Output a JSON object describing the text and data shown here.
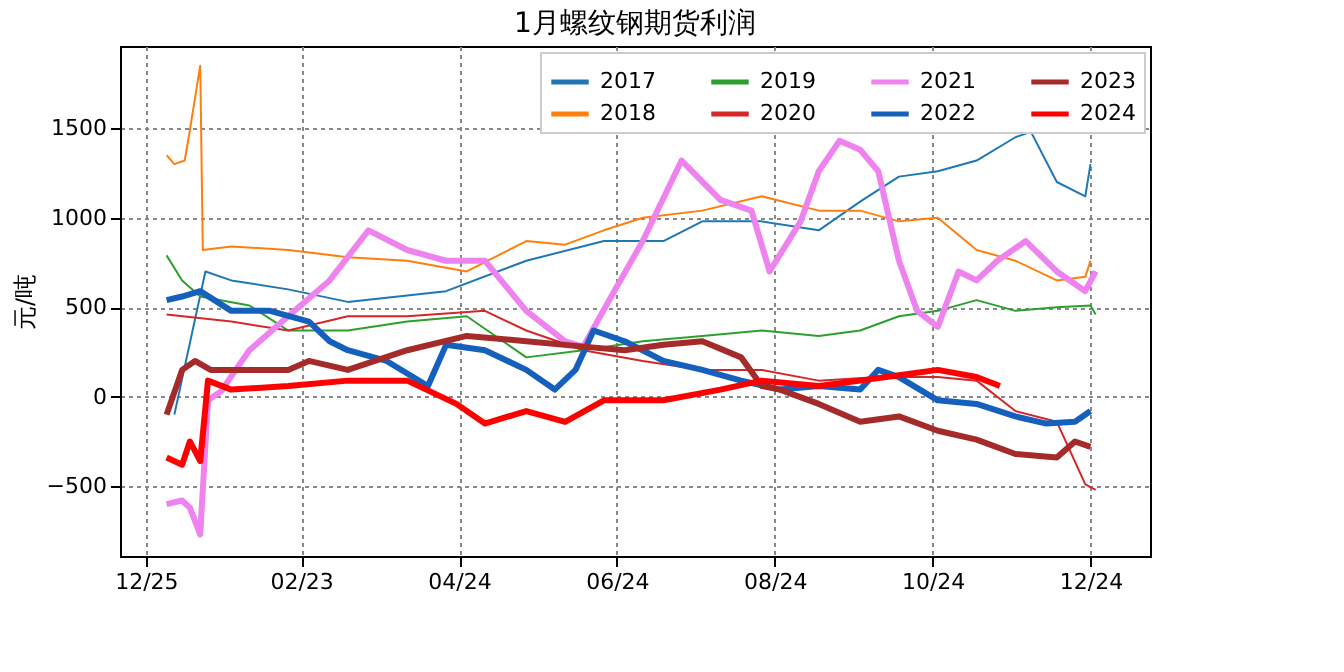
{
  "chart_data": {
    "type": "line",
    "title": "1月螺纹钢期货利润",
    "ylabel": "元/吨",
    "xlim": [
      "2023-12-15",
      "2025-01-16"
    ],
    "xticks": [
      {
        "value": "2023-12-25",
        "label": "12/25"
      },
      {
        "value": "2024-02-23",
        "label": "02/23"
      },
      {
        "value": "2024-04-24",
        "label": "04/24"
      },
      {
        "value": "2024-06-24",
        "label": "06/24"
      },
      {
        "value": "2024-08-24",
        "label": "08/24"
      },
      {
        "value": "2024-10-24",
        "label": "10/24"
      },
      {
        "value": "2024-12-24",
        "label": "12/24"
      }
    ],
    "ylim": [
      -890,
      1960
    ],
    "yticks": [
      -500,
      0,
      500,
      1000,
      1500
    ],
    "grid": true,
    "legend": "top right",
    "series": [
      {
        "name": "2017",
        "color": "#1f77b4",
        "x": [
          "2024-01-05",
          "2024-01-17",
          "2024-01-27",
          "2024-02-18",
          "2024-03-12",
          "2024-04-19",
          "2024-05-20",
          "2024-06-19",
          "2024-07-12",
          "2024-07-27",
          "2024-08-19",
          "2024-09-10",
          "2024-09-26",
          "2024-10-11",
          "2024-10-26",
          "2024-11-10",
          "2024-11-25",
          "2024-12-01",
          "2024-12-11",
          "2024-12-22",
          "2024-12-24"
        ],
        "values": [
          -100,
          700,
          650,
          600,
          530,
          590,
          760,
          870,
          870,
          980,
          980,
          930,
          1090,
          1230,
          1260,
          1320,
          1450,
          1480,
          1200,
          1120,
          1300
        ]
      },
      {
        "name": "2018",
        "color": "#ff7f0e",
        "x": [
          "2024-01-02",
          "2024-01-05",
          "2024-01-09",
          "2024-01-11",
          "2024-01-15",
          "2024-01-16",
          "2024-01-27",
          "2024-02-18",
          "2024-03-12",
          "2024-04-04",
          "2024-04-27",
          "2024-05-20",
          "2024-06-04",
          "2024-06-19",
          "2024-07-04",
          "2024-07-27",
          "2024-08-19",
          "2024-09-10",
          "2024-09-26",
          "2024-10-11",
          "2024-10-26",
          "2024-11-10",
          "2024-11-25",
          "2024-12-11",
          "2024-12-22",
          "2024-12-24"
        ],
        "values": [
          1350,
          1300,
          1320,
          1490,
          1850,
          820,
          840,
          820,
          780,
          760,
          700,
          870,
          850,
          930,
          1000,
          1040,
          1120,
          1040,
          1040,
          980,
          1000,
          820,
          760,
          650,
          670,
          760
        ]
      },
      {
        "name": "2019",
        "color": "#2ca02c",
        "x": [
          "2024-01-02",
          "2024-01-08",
          "2024-01-15",
          "2024-02-03",
          "2024-02-18",
          "2024-03-12",
          "2024-04-04",
          "2024-04-27",
          "2024-05-20",
          "2024-06-11",
          "2024-07-04",
          "2024-07-27",
          "2024-08-19",
          "2024-09-10",
          "2024-09-26",
          "2024-10-11",
          "2024-10-26",
          "2024-11-10",
          "2024-11-25",
          "2024-12-11",
          "2024-12-24",
          "2024-12-26"
        ],
        "values": [
          790,
          650,
          560,
          510,
          370,
          370,
          420,
          450,
          220,
          260,
          310,
          340,
          370,
          340,
          370,
          450,
          480,
          540,
          480,
          500,
          510,
          460
        ]
      },
      {
        "name": "2020",
        "color": "#d62728",
        "x": [
          "2024-01-02",
          "2024-01-27",
          "2024-02-18",
          "2024-03-12",
          "2024-04-04",
          "2024-05-04",
          "2024-05-20",
          "2024-06-11",
          "2024-07-04",
          "2024-07-27",
          "2024-08-19",
          "2024-09-10",
          "2024-10-03",
          "2024-10-26",
          "2024-11-10",
          "2024-11-25",
          "2024-12-11",
          "2024-12-22",
          "2024-12-26"
        ],
        "values": [
          460,
          420,
          370,
          450,
          450,
          480,
          370,
          260,
          200,
          150,
          150,
          90,
          110,
          110,
          90,
          -80,
          -140,
          -490,
          -520
        ]
      },
      {
        "name": "2021",
        "color": "#ee82ee",
        "x": [
          "2024-01-02",
          "2024-01-08",
          "2024-01-11",
          "2024-01-15",
          "2024-01-18",
          "2024-01-23",
          "2024-02-03",
          "2024-02-18",
          "2024-03-05",
          "2024-03-20",
          "2024-04-04",
          "2024-04-19",
          "2024-05-04",
          "2024-05-20",
          "2024-06-04",
          "2024-06-11",
          "2024-06-23",
          "2024-07-04",
          "2024-07-19",
          "2024-08-03",
          "2024-08-15",
          "2024-08-22",
          "2024-09-03",
          "2024-09-10",
          "2024-09-18",
          "2024-09-26",
          "2024-10-03",
          "2024-10-11",
          "2024-10-18",
          "2024-10-26",
          "2024-11-03",
          "2024-11-10",
          "2024-11-18",
          "2024-11-29",
          "2024-12-11",
          "2024-12-22",
          "2024-12-26"
        ],
        "values": [
          -600,
          -580,
          -620,
          -770,
          -20,
          30,
          260,
          450,
          650,
          930,
          820,
          760,
          760,
          480,
          310,
          280,
          590,
          870,
          1320,
          1100,
          1040,
          700,
          980,
          1260,
          1430,
          1380,
          1260,
          760,
          480,
          390,
          700,
          650,
          760,
          870,
          700,
          590,
          700
        ]
      },
      {
        "name": "2022",
        "color": "#1560bd",
        "x": [
          "2024-01-02",
          "2024-01-08",
          "2024-01-15",
          "2024-01-27",
          "2024-02-11",
          "2024-02-26",
          "2024-03-05",
          "2024-03-12",
          "2024-03-27",
          "2024-04-12",
          "2024-04-19",
          "2024-05-04",
          "2024-05-20",
          "2024-05-31",
          "2024-06-08",
          "2024-06-15",
          "2024-06-27",
          "2024-07-12",
          "2024-07-27",
          "2024-08-11",
          "2024-08-26",
          "2024-09-10",
          "2024-09-26",
          "2024-10-03",
          "2024-10-11",
          "2024-10-26",
          "2024-11-10",
          "2024-11-25",
          "2024-12-07",
          "2024-12-18",
          "2024-12-24"
        ],
        "values": [
          540,
          560,
          590,
          480,
          480,
          420,
          310,
          260,
          200,
          60,
          290,
          260,
          150,
          40,
          150,
          370,
          310,
          200,
          150,
          90,
          40,
          60,
          40,
          150,
          110,
          -20,
          -40,
          -110,
          -150,
          -140,
          -80
        ]
      },
      {
        "name": "2023",
        "color": "#a52a2a",
        "x": [
          "2024-01-02",
          "2024-01-08",
          "2024-01-13",
          "2024-01-19",
          "2024-02-03",
          "2024-02-18",
          "2024-02-26",
          "2024-03-12",
          "2024-04-04",
          "2024-04-27",
          "2024-05-20",
          "2024-06-11",
          "2024-06-27",
          "2024-07-12",
          "2024-07-27",
          "2024-08-11",
          "2024-08-19",
          "2024-08-26",
          "2024-09-10",
          "2024-09-26",
          "2024-10-11",
          "2024-10-26",
          "2024-11-10",
          "2024-11-25",
          "2024-12-11",
          "2024-12-18",
          "2024-12-24"
        ],
        "values": [
          -100,
          150,
          200,
          150,
          150,
          150,
          200,
          150,
          260,
          340,
          310,
          280,
          260,
          290,
          310,
          220,
          60,
          40,
          -40,
          -140,
          -110,
          -190,
          -240,
          -320,
          -340,
          -250,
          -280
        ]
      },
      {
        "name": "2024",
        "color": "#ff0000",
        "x": [
          "2024-01-02",
          "2024-01-08",
          "2024-01-11",
          "2024-01-15",
          "2024-01-18",
          "2024-01-27",
          "2024-02-18",
          "2024-03-12",
          "2024-04-04",
          "2024-04-23",
          "2024-05-04",
          "2024-05-20",
          "2024-06-04",
          "2024-06-19",
          "2024-07-12",
          "2024-08-03",
          "2024-08-19",
          "2024-09-10",
          "2024-09-26",
          "2024-10-11",
          "2024-10-26",
          "2024-11-10",
          "2024-11-19"
        ],
        "values": [
          -340,
          -380,
          -250,
          -360,
          90,
          40,
          60,
          90,
          90,
          -40,
          -150,
          -80,
          -140,
          -20,
          -20,
          40,
          90,
          60,
          90,
          120,
          150,
          110,
          60
        ]
      }
    ]
  }
}
